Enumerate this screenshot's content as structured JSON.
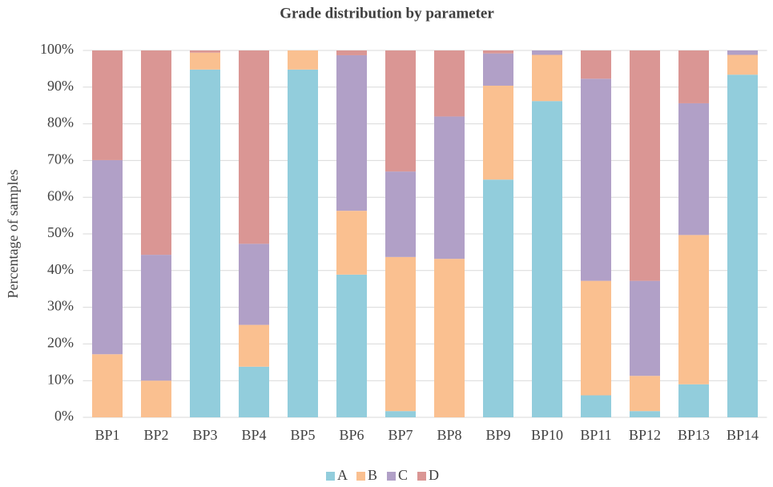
{
  "chart_data": {
    "type": "stacked_bar",
    "title": "Grade distribution by parameter",
    "y_label": "Percentage of samples",
    "categories": [
      "BP1",
      "BP2",
      "BP3",
      "BP4",
      "BP5",
      "BP6",
      "BP7",
      "BP8",
      "BP9",
      "BP10",
      "BP11",
      "BP12",
      "BP13",
      "BP14"
    ],
    "series": [
      {
        "name": "A",
        "color": "#92cddc",
        "values": [
          0,
          0,
          94.8,
          13.8,
          94.8,
          38.9,
          1.7,
          0,
          64.8,
          86.2,
          6,
          1.7,
          9,
          93.4
        ]
      },
      {
        "name": "B",
        "color": "#fac090",
        "values": [
          17.2,
          10,
          4.6,
          11.4,
          5.2,
          17.4,
          42,
          43.2,
          25.6,
          12.6,
          31.2,
          9.6,
          40.7,
          5.4
        ]
      },
      {
        "name": "C",
        "color": "#b1a0c7",
        "values": [
          52.9,
          34.3,
          0,
          22.1,
          0,
          42.4,
          23.3,
          38.8,
          8.8,
          1.2,
          55.1,
          25.9,
          35.9,
          1.2
        ]
      },
      {
        "name": "D",
        "color": "#da9694",
        "values": [
          29.9,
          55.7,
          0.6,
          52.7,
          0,
          1.3,
          33,
          18,
          0.8,
          0,
          7.7,
          62.8,
          14.4,
          0
        ]
      }
    ],
    "ylim": [
      0,
      100
    ],
    "yticks": [
      {
        "value": 0,
        "label": "0%"
      },
      {
        "value": 10,
        "label": "10%"
      },
      {
        "value": 20,
        "label": "20%"
      },
      {
        "value": 30,
        "label": "30%"
      },
      {
        "value": 40,
        "label": "40%"
      },
      {
        "value": 50,
        "label": "50%"
      },
      {
        "value": 60,
        "label": "60%"
      },
      {
        "value": 70,
        "label": "70%"
      },
      {
        "value": 80,
        "label": "80%"
      },
      {
        "value": 90,
        "label": "90%"
      },
      {
        "value": 100,
        "label": "100%"
      }
    ],
    "grid": true,
    "legend": "bottom"
  }
}
